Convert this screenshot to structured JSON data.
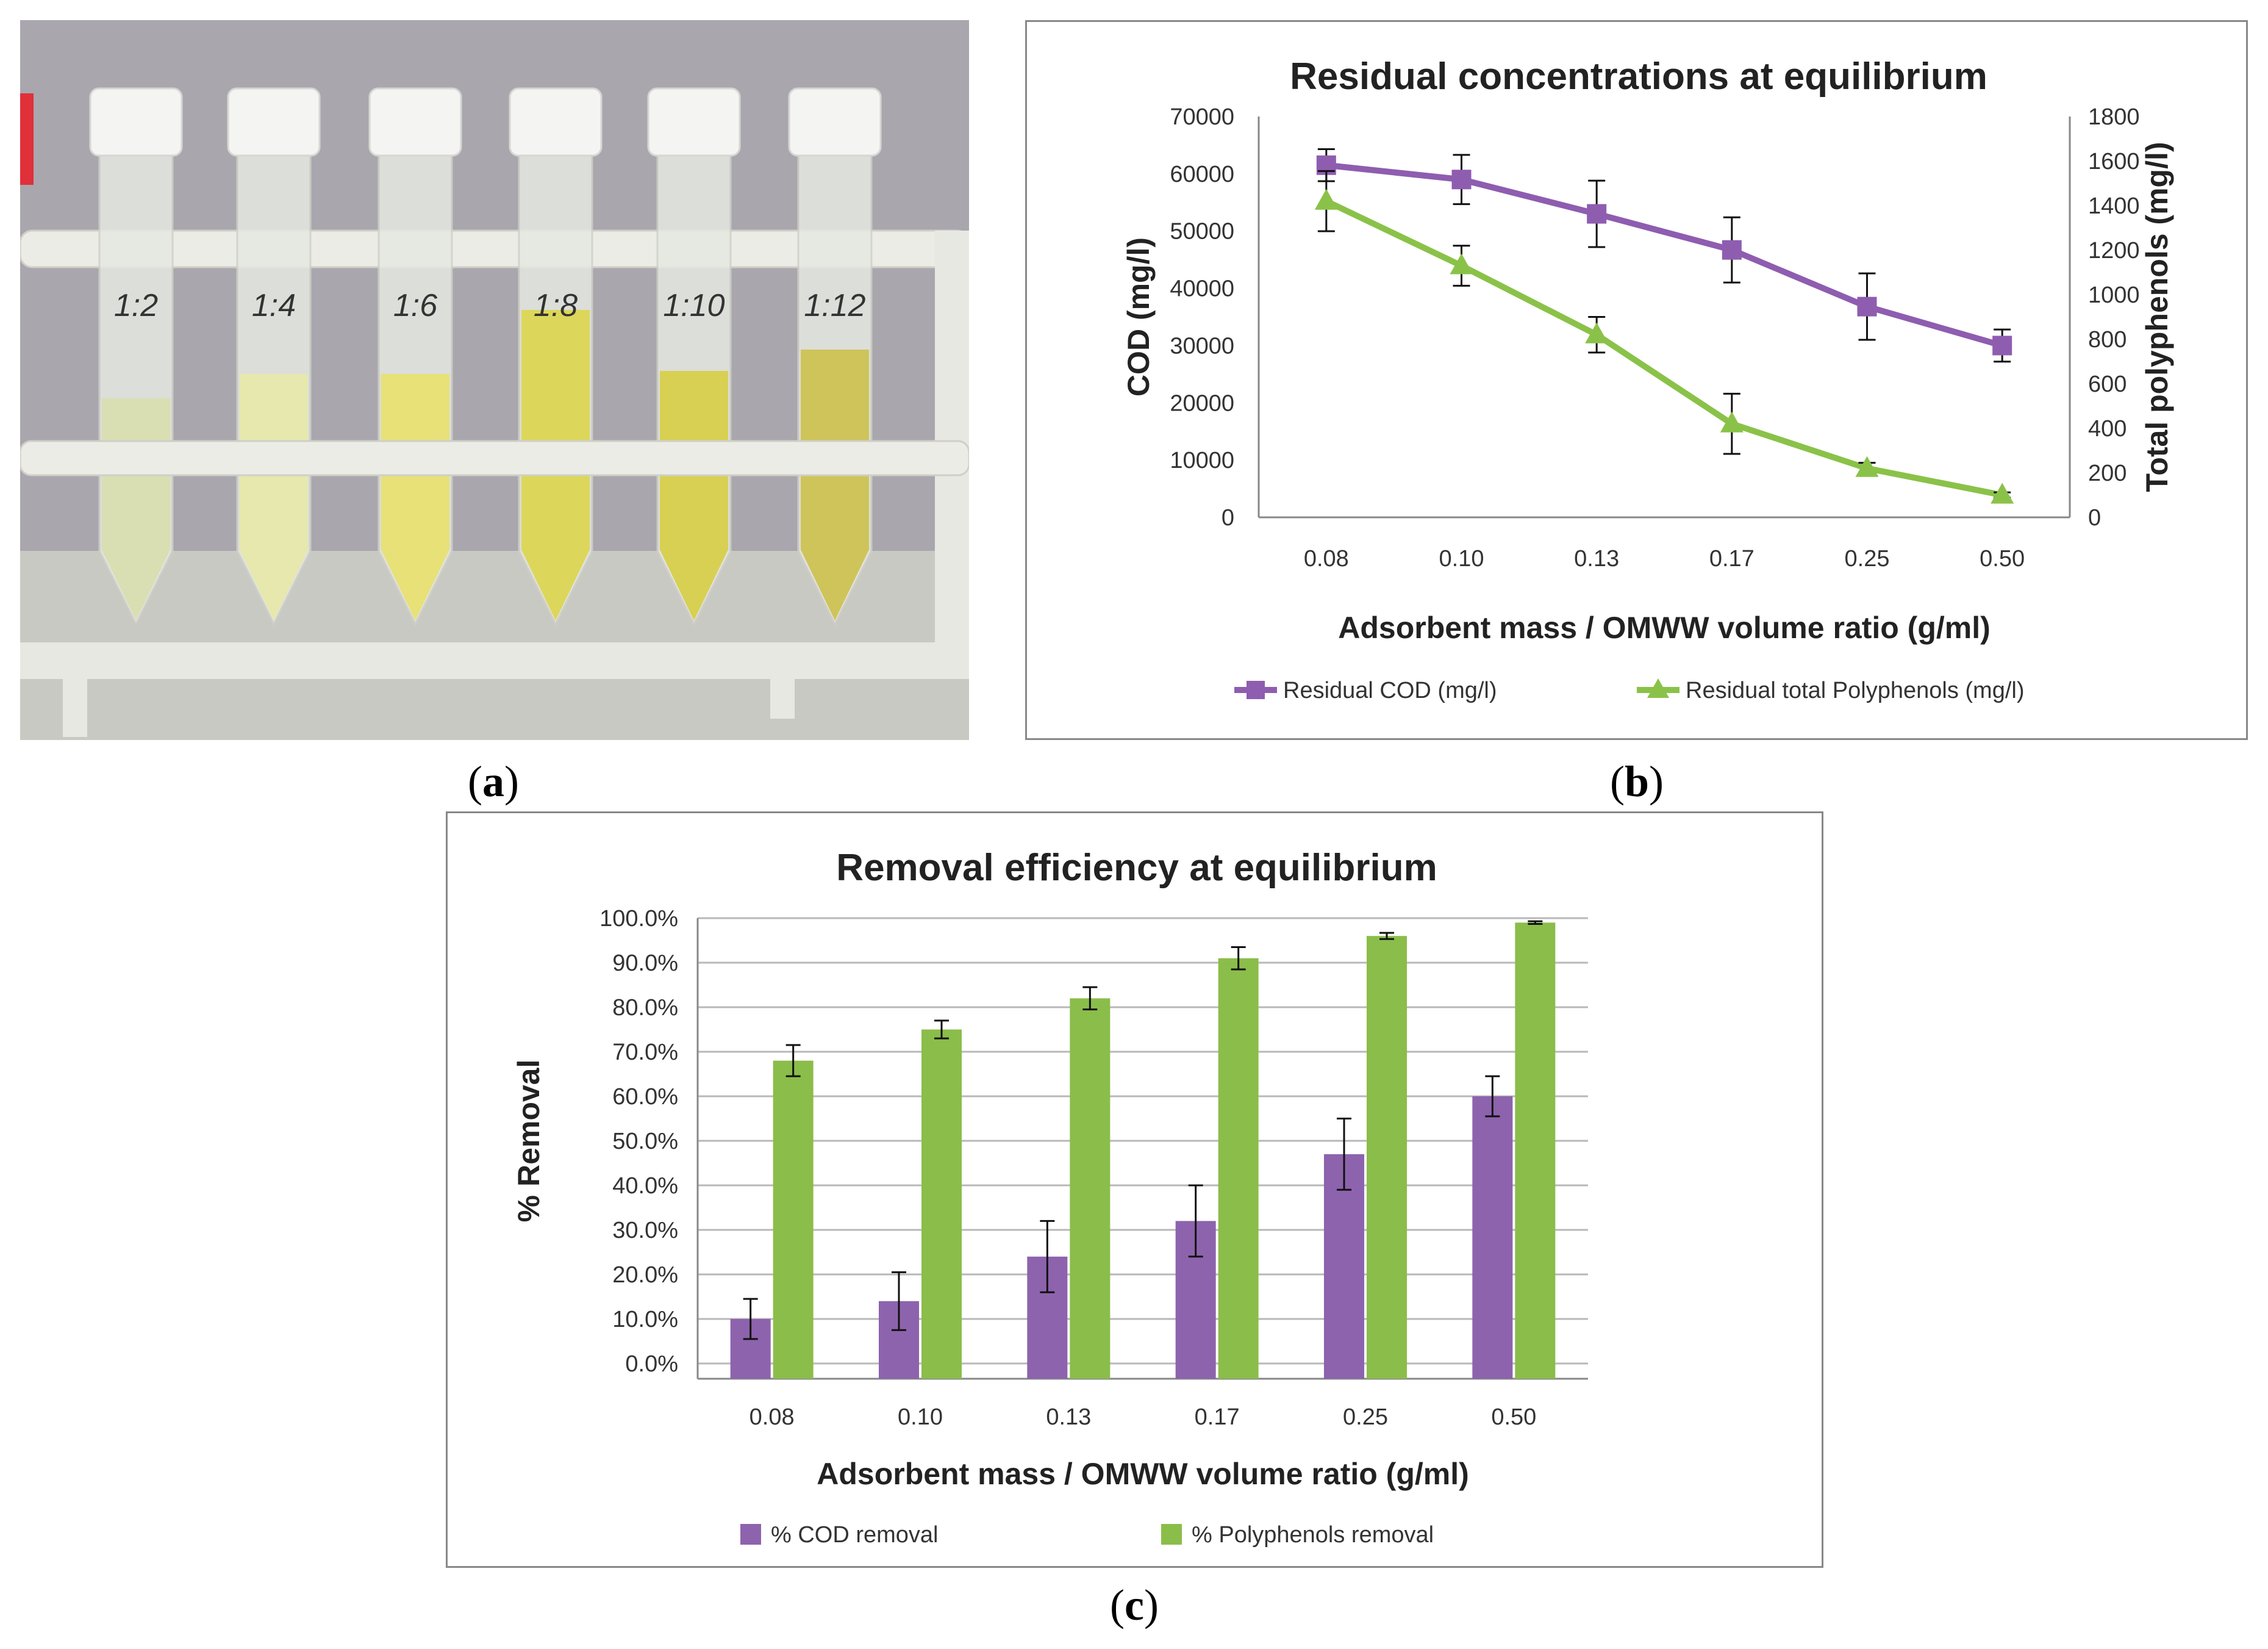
{
  "photo": {
    "tube_labels": [
      "1:2",
      "1:4",
      "1:6",
      "1:8",
      "1:10",
      "1:12"
    ],
    "tube_liquid_colors": [
      "#d9dfb2",
      "#e6e8ad",
      "#e7e178",
      "#dcd75a",
      "#d8d052",
      "#cfc45a"
    ]
  },
  "panel_labels": {
    "a": {
      "open": "(",
      "letter": "a",
      "close": ")"
    },
    "b": {
      "open": "(",
      "letter": "b",
      "close": ")"
    },
    "c": {
      "open": "(",
      "letter": "c",
      "close": ")"
    }
  },
  "chart_data": [
    {
      "type": "line",
      "title": "Residual concentrations at equilibrium",
      "xlabel": "Adsorbent mass / OMWW volume ratio (g/ml)",
      "ylabel": "COD (mg/l)",
      "y2label": "Total polyphenols (mg/l)",
      "categories": [
        "0.08",
        "0.10",
        "0.13",
        "0.17",
        "0.25",
        "0.50"
      ],
      "ylim": [
        0,
        70000
      ],
      "y_ticks": [
        "0",
        "10000",
        "20000",
        "30000",
        "40000",
        "50000",
        "60000",
        "70000"
      ],
      "y2lim": [
        0,
        1800
      ],
      "y2_ticks": [
        "0",
        "200",
        "400",
        "600",
        "800",
        "1000",
        "1200",
        "1400",
        "1600",
        "1800"
      ],
      "series": [
        {
          "name": "Residual COD (mg/l)",
          "axis": "left",
          "color": "#8e5db0",
          "marker": "square",
          "values": [
            61500,
            59000,
            53000,
            46700,
            36800,
            30000
          ],
          "errors": [
            2800,
            4300,
            5800,
            5700,
            5800,
            2800
          ]
        },
        {
          "name": "Residual total Polyphenols (mg/l)",
          "axis": "right",
          "color": "#8ac249",
          "marker": "triangle",
          "values": [
            1420,
            1130,
            820,
            420,
            220,
            100
          ],
          "errors": [
            135,
            90,
            80,
            135,
            25,
            12
          ]
        }
      ],
      "legend": "bottom"
    },
    {
      "type": "bar",
      "title": "Removal efficiency at equilibrium",
      "xlabel": "Adsorbent mass / OMWW volume ratio (g/ml)",
      "ylabel": "% Removal",
      "categories": [
        "0.08",
        "0.10",
        "0.13",
        "0.17",
        "0.25",
        "0.50"
      ],
      "ylim": [
        0,
        100
      ],
      "y_ticks": [
        "0.0%",
        "10.0%",
        "20.0%",
        "30.0%",
        "40.0%",
        "50.0%",
        "60.0%",
        "70.0%",
        "80.0%",
        "90.0%",
        "100.0%"
      ],
      "series": [
        {
          "name": "% COD removal",
          "color": "#8d63ad",
          "values": [
            10,
            14,
            24,
            32,
            47,
            60
          ],
          "errors": [
            4.5,
            6.5,
            8.0,
            8.0,
            8.0,
            4.5
          ]
        },
        {
          "name": "% Polyphenols removal",
          "color": "#8bbd4a",
          "values": [
            68,
            75,
            82,
            91,
            96,
            99
          ],
          "errors": [
            3.5,
            2.0,
            2.5,
            2.5,
            0.7,
            0.3
          ]
        }
      ],
      "legend": "bottom"
    }
  ]
}
